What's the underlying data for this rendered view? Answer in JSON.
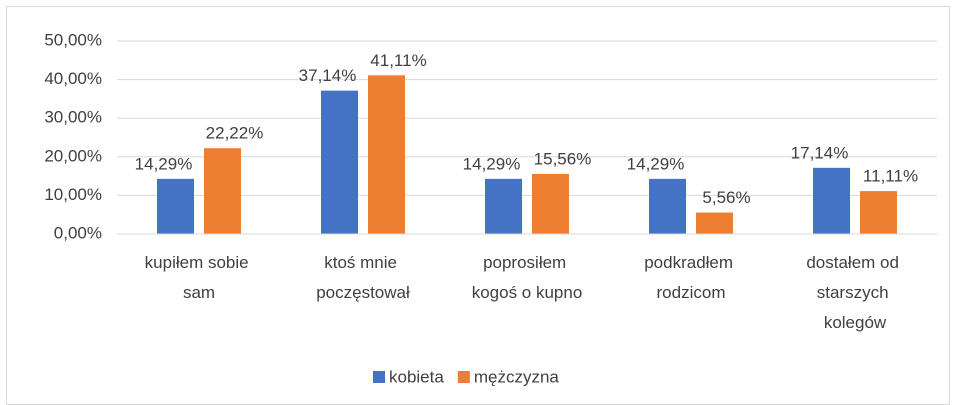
{
  "chart_data": {
    "type": "bar",
    "categories": [
      "kupiłem sobie sam",
      "ktoś mnie poczęstował",
      "poprosiłem kogoś o kupno",
      "podkradłem rodzicom",
      "dostałem od starszych kolegów"
    ],
    "series": [
      {
        "name": "kobieta",
        "color": "#4472c4",
        "values": [
          14.29,
          37.14,
          14.29,
          14.29,
          17.14
        ],
        "value_labels": [
          "14,29%",
          "37,14%",
          "14,29%",
          "14,29%",
          "17,14%"
        ]
      },
      {
        "name": "mężczyzna",
        "color": "#ed7d31",
        "values": [
          22.22,
          41.11,
          15.56,
          5.56,
          11.11
        ],
        "value_labels": [
          "22,22%",
          "41,11%",
          "15,56%",
          "5,56%",
          "11,11%"
        ]
      }
    ],
    "ylim": [
      0,
      50
    ],
    "yticks": [
      {
        "value": 0,
        "label": "0,00%"
      },
      {
        "value": 10,
        "label": "10,00%"
      },
      {
        "value": 20,
        "label": "20,00%"
      },
      {
        "value": 30,
        "label": "30,00%"
      },
      {
        "value": 40,
        "label": "40,00%"
      },
      {
        "value": 50,
        "label": "50,00%"
      }
    ],
    "grid": true,
    "legend": "bottom"
  }
}
